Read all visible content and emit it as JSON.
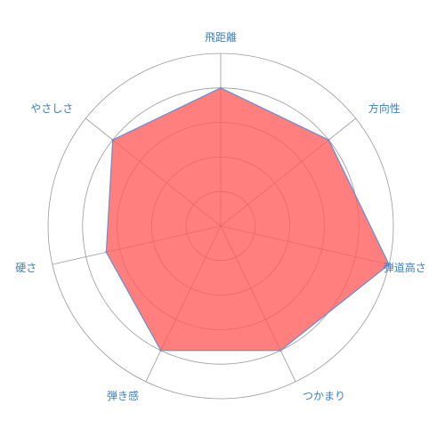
{
  "chart_data": {
    "type": "radar",
    "title": "",
    "categories": [
      "飛距離",
      "方向性",
      "弾道高さ",
      "つかまり",
      "弾き感",
      "硬さ",
      "やさしさ"
    ],
    "series": [
      {
        "values": [
          4,
          4,
          5,
          4,
          4,
          3.4,
          4
        ],
        "fill_color": "#ff5a5a",
        "fill_opacity": 0.78,
        "line_color": "#6a8fd0"
      }
    ],
    "scale": {
      "min": 0,
      "max": 5,
      "rings": 5
    },
    "grid": true,
    "label_color": "#3a7fc0",
    "grid_color": "#999999"
  }
}
